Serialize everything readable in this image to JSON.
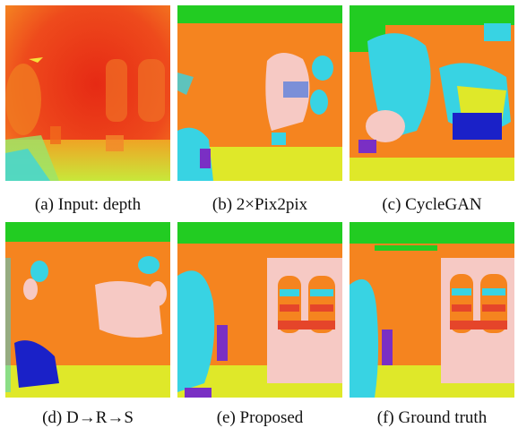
{
  "figure": {
    "panels": [
      {
        "id": "a",
        "caption": "(a) Input: depth"
      },
      {
        "id": "b",
        "caption": "(b) 2×Pix2pix"
      },
      {
        "id": "c",
        "caption": "(c) CycleGAN"
      },
      {
        "id": "d",
        "caption": "(d) D→R→S"
      },
      {
        "id": "e",
        "caption": "(e) Proposed"
      },
      {
        "id": "f",
        "caption": "(f) Ground truth"
      }
    ]
  },
  "palette": {
    "orange": "#f5841f",
    "green": "#22cc22",
    "yellow": "#dfe829",
    "cyan": "#38d3e3",
    "pink": "#f6c9c4",
    "red": "#e5452a",
    "purple": "#7a2fc4",
    "blue": "#1a21c8",
    "depth_red": "#e8311a",
    "depth_orange": "#f37a1e"
  }
}
